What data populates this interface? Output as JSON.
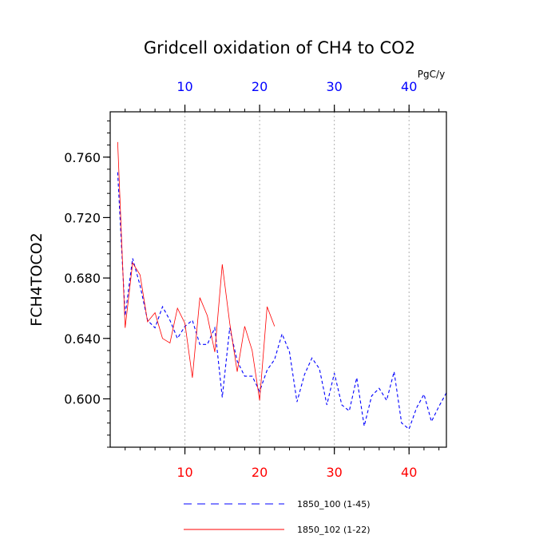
{
  "chart_data": {
    "type": "line",
    "title": "Gridcell oxidation of CH4 to CO2",
    "ylabel": "FCH4TOCO2",
    "xlabel": "",
    "top_axis_unit": "PgC/y",
    "xlim": [
      0,
      45
    ],
    "ylim": [
      0.568,
      0.79
    ],
    "yticks": [
      0.6,
      0.64,
      0.68,
      0.72,
      0.76
    ],
    "ytick_labels": [
      "0.600",
      "0.640",
      "0.680",
      "0.720",
      "0.760"
    ],
    "xticks": [
      10,
      20,
      30,
      40
    ],
    "xtick_labels": [
      "10",
      "20",
      "30",
      "40"
    ],
    "bottom_tick_color": "#ff0000",
    "top_tick_color": "#0000ff",
    "grid_x": true,
    "series": [
      {
        "name": "1850_100 (1-45)",
        "color": "#0000ff",
        "dash": "dashed",
        "x": [
          1,
          2,
          3,
          4,
          5,
          6,
          7,
          8,
          9,
          10,
          11,
          12,
          13,
          14,
          15,
          16,
          17,
          18,
          19,
          20,
          21,
          22,
          23,
          24,
          25,
          26,
          27,
          28,
          29,
          30,
          31,
          32,
          33,
          34,
          35,
          36,
          37,
          38,
          39,
          40,
          41,
          42,
          43,
          44,
          45
        ],
        "y": [
          0.75,
          0.655,
          0.693,
          0.675,
          0.652,
          0.647,
          0.661,
          0.652,
          0.64,
          0.648,
          0.652,
          0.636,
          0.636,
          0.647,
          0.601,
          0.647,
          0.625,
          0.615,
          0.615,
          0.605,
          0.619,
          0.626,
          0.643,
          0.631,
          0.598,
          0.616,
          0.627,
          0.62,
          0.596,
          0.617,
          0.596,
          0.592,
          0.614,
          0.582,
          0.602,
          0.607,
          0.599,
          0.618,
          0.584,
          0.58,
          0.594,
          0.603,
          0.585,
          0.595,
          0.604
        ]
      },
      {
        "name": "1850_102 (1-22)",
        "color": "#ff0000",
        "dash": "solid",
        "x": [
          1,
          2,
          3,
          4,
          5,
          6,
          7,
          8,
          9,
          10,
          11,
          12,
          13,
          14,
          15,
          16,
          17,
          18,
          19,
          20,
          21,
          22
        ],
        "y": [
          0.77,
          0.647,
          0.69,
          0.682,
          0.651,
          0.657,
          0.64,
          0.637,
          0.66,
          0.65,
          0.614,
          0.667,
          0.655,
          0.631,
          0.689,
          0.65,
          0.618,
          0.648,
          0.632,
          0.599,
          0.661,
          0.648
        ]
      }
    ],
    "legend": [
      {
        "label": "1850_100 (1-45)",
        "color": "#0000ff",
        "dash": "dashed"
      },
      {
        "label": "1850_102 (1-22)",
        "color": "#ff0000",
        "dash": "solid"
      }
    ]
  }
}
